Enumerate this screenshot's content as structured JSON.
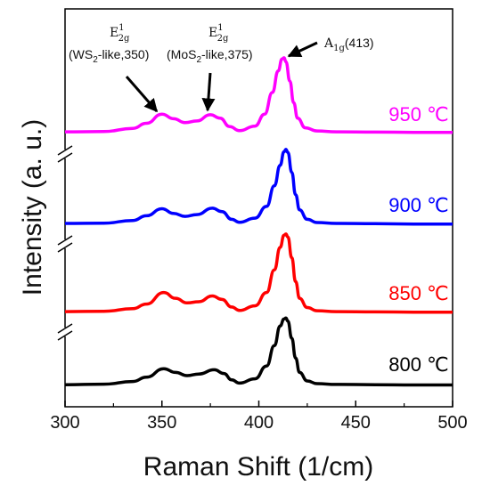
{
  "chart_data": {
    "type": "line",
    "xlabel": "Raman Shift (1/cm)",
    "ylabel": "Intensity (a. u.)",
    "xlim": [
      300,
      500
    ],
    "xticks": [
      "300",
      "350",
      "400",
      "450",
      "500"
    ],
    "yticks": [],
    "grid": false,
    "legend": "none",
    "axis_breaks": 3,
    "series": [
      {
        "name": "950 ℃",
        "color": "#ff00ff",
        "x": [
          300,
          320,
          335,
          342,
          350,
          356,
          362,
          368,
          375,
          380,
          385,
          390,
          398,
          403,
          407,
          410,
          412,
          413,
          414,
          416,
          418,
          420,
          424,
          430,
          440,
          460,
          480,
          500
        ],
        "y": [
          0.3,
          0.35,
          0.9,
          1.8,
          3.4,
          2.6,
          1.9,
          2.2,
          3.3,
          2.7,
          1.2,
          0.5,
          1.3,
          3.4,
          7.2,
          11.0,
          13.1,
          13.3,
          12.6,
          9.2,
          5.4,
          2.7,
          1.0,
          0.45,
          0.3,
          0.25,
          0.2,
          0.2
        ]
      },
      {
        "name": "900 ℃",
        "color": "#0000ff",
        "x": [
          300,
          320,
          335,
          342,
          350,
          356,
          362,
          368,
          376,
          381,
          386,
          390,
          398,
          404,
          408,
          411,
          413,
          414,
          415,
          417,
          419,
          421,
          425,
          430,
          440,
          460,
          480,
          500
        ],
        "y": [
          0.3,
          0.35,
          0.8,
          1.6,
          2.8,
          2.0,
          1.5,
          1.8,
          2.9,
          2.3,
          1.0,
          0.5,
          1.2,
          3.2,
          6.7,
          10.2,
          12.5,
          12.9,
          12.4,
          9.0,
          5.2,
          2.6,
          1.0,
          0.45,
          0.3,
          0.25,
          0.2,
          0.2
        ]
      },
      {
        "name": "850 ℃",
        "color": "#ff0000",
        "x": [
          300,
          320,
          335,
          342,
          351,
          357,
          363,
          369,
          376,
          381,
          386,
          390,
          398,
          404,
          408,
          411,
          413,
          414,
          415,
          417,
          419,
          421,
          425,
          430,
          440,
          460,
          480,
          500
        ],
        "y": [
          0.3,
          0.35,
          0.8,
          1.6,
          3.6,
          2.6,
          1.8,
          2.0,
          3.0,
          2.4,
          1.1,
          0.5,
          1.3,
          3.6,
          7.5,
          11.4,
          13.5,
          13.7,
          13.2,
          9.6,
          5.5,
          2.6,
          1.0,
          0.45,
          0.3,
          0.25,
          0.2,
          0.2
        ]
      },
      {
        "name": "800 ℃",
        "color": "#000000",
        "x": [
          300,
          320,
          335,
          342,
          351,
          357,
          363,
          369,
          377,
          382,
          386,
          390,
          398,
          404,
          408,
          411,
          413,
          414,
          415,
          417,
          419,
          421,
          425,
          430,
          440,
          460,
          480,
          500
        ],
        "y": [
          0.3,
          0.4,
          0.9,
          1.7,
          3.3,
          2.6,
          2.0,
          2.3,
          3.1,
          2.4,
          1.2,
          0.6,
          1.4,
          3.8,
          7.6,
          11.3,
          12.6,
          12.8,
          12.2,
          9.0,
          5.3,
          2.6,
          1.0,
          0.5,
          0.35,
          0.3,
          0.25,
          0.25
        ]
      }
    ],
    "annotations": [
      {
        "symbol": "E",
        "sup": "1",
        "sub": "2g",
        "label": "(WS",
        "label_sub": "2",
        "label_rest": "-like,350)",
        "target_x": 350
      },
      {
        "symbol": "E",
        "sup": "1",
        "sub": "2g",
        "label": "(MoS",
        "label_sub": "2",
        "label_rest": "-like,375)",
        "target_x": 375
      },
      {
        "symbol": "A",
        "sub": "1g",
        "text": "(413)",
        "target_x": 413
      }
    ]
  }
}
